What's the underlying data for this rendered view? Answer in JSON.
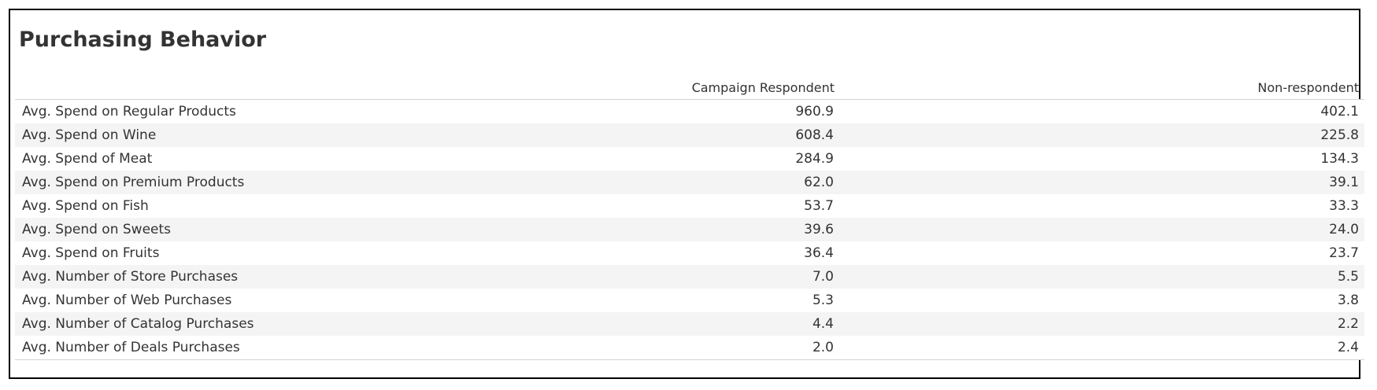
{
  "chart_data": {
    "type": "table",
    "title": "Purchasing Behavior",
    "columns": [
      "Campaign Respondent",
      "Non-respondent"
    ],
    "rows": [
      {
        "label": "Avg. Spend on Regular Products",
        "values": [
          "960.9",
          "402.1"
        ]
      },
      {
        "label": "Avg. Spend on Wine",
        "values": [
          "608.4",
          "225.8"
        ]
      },
      {
        "label": "Avg. Spend of Meat",
        "values": [
          "284.9",
          "134.3"
        ]
      },
      {
        "label": "Avg. Spend on Premium Products",
        "values": [
          "62.0",
          "39.1"
        ]
      },
      {
        "label": "Avg. Spend on Fish",
        "values": [
          "53.7",
          "33.3"
        ]
      },
      {
        "label": "Avg. Spend on Sweets",
        "values": [
          "39.6",
          "24.0"
        ]
      },
      {
        "label": "Avg. Spend on Fruits",
        "values": [
          "36.4",
          "23.7"
        ]
      },
      {
        "label": "Avg. Number of Store Purchases",
        "values": [
          "7.0",
          "5.5"
        ]
      },
      {
        "label": "Avg. Number of Web Purchases",
        "values": [
          "5.3",
          "3.8"
        ]
      },
      {
        "label": "Avg. Number of Catalog Purchases",
        "values": [
          "4.4",
          "2.2"
        ]
      },
      {
        "label": "Avg. Number of Deals Purchases",
        "values": [
          "2.0",
          "2.4"
        ]
      }
    ]
  }
}
